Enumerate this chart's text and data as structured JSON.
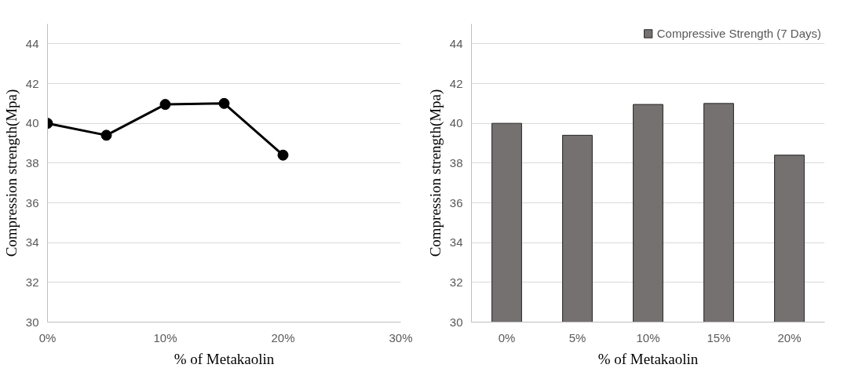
{
  "chart_data": [
    {
      "type": "line",
      "x": [
        0,
        5,
        10,
        15,
        20
      ],
      "values": [
        40,
        39.4,
        40.95,
        41.0,
        38.4
      ],
      "color": "#000000",
      "marker": "circle",
      "xlim": [
        0,
        30
      ],
      "xticks": [
        {
          "value": 0,
          "label": "0%"
        },
        {
          "value": 10,
          "label": "10%"
        },
        {
          "value": 20,
          "label": "20%"
        },
        {
          "value": 30,
          "label": "30%"
        }
      ],
      "ylim": [
        30,
        45
      ],
      "yticks": [
        30,
        32,
        34,
        36,
        38,
        40,
        42,
        44
      ],
      "grid": "y",
      "xlabel": "% of Metakaolin",
      "ylabel": "Compression strength(Mpa)"
    },
    {
      "type": "bar",
      "categories": [
        "0%",
        "5%",
        "10%",
        "15%",
        "20%"
      ],
      "series": [
        {
          "name": "Compressive Strength (7 Days)",
          "color": "#767171",
          "values": [
            40,
            39.4,
            40.95,
            41.0,
            38.4
          ]
        }
      ],
      "ylim": [
        30,
        45
      ],
      "yticks": [
        30,
        32,
        34,
        36,
        38,
        40,
        42,
        44
      ],
      "grid": "y",
      "legend": "top right",
      "xlabel": "% of Metakaolin",
      "ylabel": "Compression strength(Mpa)"
    }
  ]
}
